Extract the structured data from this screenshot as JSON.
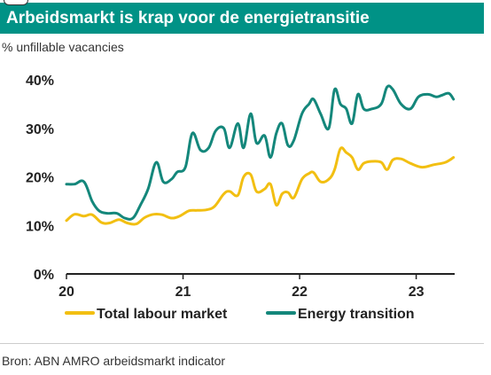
{
  "header": {
    "title": "Arbeidsmarkt is krap voor de energietransitie",
    "subtitle": "% unfillable vacancies"
  },
  "footer": {
    "source": "Bron: ABN AMRO arbeidsmarkt indicator"
  },
  "colors": {
    "title_bg": "#009286",
    "series_total": "#f2bf12",
    "series_energy": "#14877b",
    "axis": "#222222"
  },
  "chart_data": {
    "type": "line",
    "title": "Arbeidsmarkt is krap voor de energietransitie",
    "ylabel": "% unfillable vacancies",
    "xlim": [
      2020.0,
      2023.33
    ],
    "ylim": [
      0,
      40
    ],
    "x_ticks": [
      2020,
      2021,
      2022,
      2023
    ],
    "x_tick_labels": [
      "20",
      "21",
      "22",
      "23"
    ],
    "y_ticks": [
      0,
      10,
      20,
      30,
      40
    ],
    "y_tick_labels": [
      "0%",
      "10%",
      "20%",
      "30%",
      "40%"
    ],
    "grid": false,
    "legend_position": "bottom",
    "series": [
      {
        "name": "Total labour market",
        "color": "#f2bf12",
        "x": [
          2020.0,
          2020.07,
          2020.15,
          2020.22,
          2020.3,
          2020.37,
          2020.45,
          2020.52,
          2020.6,
          2020.67,
          2020.75,
          2020.82,
          2020.9,
          2020.97,
          2021.05,
          2021.12,
          2021.2,
          2021.27,
          2021.35,
          2021.4,
          2021.47,
          2021.52,
          2021.58,
          2021.63,
          2021.7,
          2021.75,
          2021.8,
          2021.85,
          2021.9,
          2021.95,
          2022.02,
          2022.08,
          2022.12,
          2022.18,
          2022.25,
          2022.3,
          2022.35,
          2022.4,
          2022.45,
          2022.5,
          2022.55,
          2022.62,
          2022.7,
          2022.75,
          2022.8,
          2022.87,
          2022.95,
          2023.05,
          2023.15,
          2023.25,
          2023.32
        ],
        "values": [
          11.0,
          12.3,
          11.9,
          12.2,
          10.6,
          10.5,
          11.2,
          10.5,
          10.3,
          11.6,
          12.3,
          12.2,
          11.5,
          11.9,
          13.0,
          13.1,
          13.2,
          13.9,
          16.5,
          17.0,
          16.2,
          20.0,
          20.5,
          17.0,
          17.5,
          18.5,
          14.2,
          16.5,
          16.8,
          15.7,
          19.5,
          20.7,
          20.9,
          19.0,
          19.5,
          21.5,
          25.8,
          25.0,
          24.0,
          21.5,
          22.8,
          23.2,
          23.0,
          21.5,
          23.5,
          23.7,
          22.8,
          22.0,
          22.5,
          23.0,
          24.0
        ]
      },
      {
        "name": "Energy transition",
        "color": "#14877b",
        "x": [
          2020.0,
          2020.07,
          2020.15,
          2020.22,
          2020.28,
          2020.35,
          2020.43,
          2020.5,
          2020.57,
          2020.63,
          2020.7,
          2020.77,
          2020.83,
          2020.9,
          2020.95,
          2021.02,
          2021.08,
          2021.15,
          2021.22,
          2021.28,
          2021.35,
          2021.4,
          2021.47,
          2021.52,
          2021.58,
          2021.63,
          2021.7,
          2021.75,
          2021.8,
          2021.85,
          2021.9,
          2021.95,
          2022.02,
          2022.08,
          2022.12,
          2022.18,
          2022.25,
          2022.3,
          2022.35,
          2022.4,
          2022.45,
          2022.5,
          2022.55,
          2022.62,
          2022.7,
          2022.75,
          2022.8,
          2022.87,
          2022.95,
          2023.02,
          2023.1,
          2023.17,
          2023.22,
          2023.28,
          2023.32
        ],
        "values": [
          18.5,
          18.5,
          19.0,
          15.0,
          13.0,
          12.5,
          12.5,
          11.5,
          11.5,
          14.0,
          17.5,
          23.0,
          19.0,
          19.5,
          21.0,
          22.0,
          29.0,
          25.5,
          26.0,
          29.5,
          30.0,
          26.0,
          31.0,
          26.0,
          33.0,
          27.0,
          28.5,
          24.0,
          29.0,
          31.0,
          26.5,
          27.5,
          33.0,
          35.0,
          36.0,
          33.0,
          30.0,
          38.0,
          35.0,
          34.0,
          31.0,
          37.0,
          34.0,
          34.0,
          35.0,
          38.5,
          38.0,
          35.0,
          34.0,
          36.5,
          37.0,
          36.5,
          36.8,
          37.2,
          36.0
        ]
      }
    ]
  }
}
